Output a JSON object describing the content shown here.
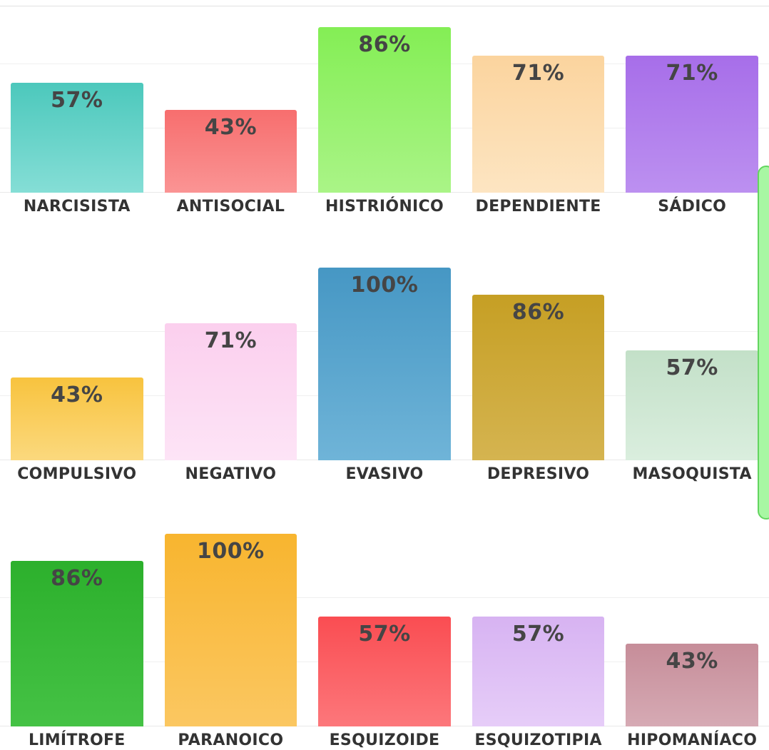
{
  "chart_data": {
    "type": "bar",
    "title": "",
    "unit": "%",
    "ylim": [
      0,
      100
    ],
    "grid": true,
    "gridline_color": "#efefef",
    "baseline_color": "#e9e9e9",
    "value_label_color": "#454545",
    "category_label_color": "#333333",
    "rows": [
      {
        "bars": [
          {
            "category": "NARCISISTA",
            "value": 57,
            "display": "57%",
            "color": "#4cc8bc",
            "color_light": "#85ded6"
          },
          {
            "category": "ANTISOCIAL",
            "value": 43,
            "display": "43%",
            "color": "#f76e6e",
            "color_light": "#fa9494"
          },
          {
            "category": "HISTRIÓNICO",
            "value": 86,
            "display": "86%",
            "color": "#84ee55",
            "color_light": "#aaf487"
          },
          {
            "category": "DEPENDIENTE",
            "value": 71,
            "display": "71%",
            "color": "#fbd49e",
            "color_light": "#fde5c2"
          },
          {
            "category": "SÁDICO",
            "value": 71,
            "display": "71%",
            "color": "#a76ee9",
            "color_light": "#bc90f0"
          }
        ]
      },
      {
        "bars": [
          {
            "category": "COMPULSIVO",
            "value": 43,
            "display": "43%",
            "color": "#f8c33e",
            "color_light": "#fbd97e"
          },
          {
            "category": "NEGATIVO",
            "value": 71,
            "display": "71%",
            "color": "#fbcfee",
            "color_light": "#fde4f6"
          },
          {
            "category": "EVASIVO",
            "value": 100,
            "display": "100%",
            "color": "#4697c4",
            "color_light": "#6fb4d8"
          },
          {
            "category": "DEPRESIVO",
            "value": 86,
            "display": "86%",
            "color": "#c69f24",
            "color_light": "#d5b450"
          },
          {
            "category": "MASOQUISTA",
            "value": 57,
            "display": "57%",
            "color": "#c3e0c8",
            "color_light": "#daeede"
          }
        ]
      },
      {
        "bars": [
          {
            "category": "LIMÍTROFE",
            "value": 86,
            "display": "86%",
            "color": "#2cb02c",
            "color_light": "#45c245"
          },
          {
            "category": "PARANOICO",
            "value": 100,
            "display": "100%",
            "color": "#f8b52f",
            "color_light": "#fbc761"
          },
          {
            "category": "ESQUIZOIDE",
            "value": 57,
            "display": "57%",
            "color": "#fa4d52",
            "color_light": "#fc777b"
          },
          {
            "category": "ESQUIZOTIPIA",
            "value": 57,
            "display": "57%",
            "color": "#d7b3f2",
            "color_light": "#e6cdf8"
          },
          {
            "category": "HIPOMANÍACO",
            "value": 43,
            "display": "43%",
            "color": "#c68d99",
            "color_light": "#d6aab4"
          }
        ]
      }
    ]
  },
  "side_handle": {
    "color": "#a8f7a3",
    "border_color": "#63d55f"
  },
  "rules": {
    "top_rule_color": "#e0e0e0"
  }
}
